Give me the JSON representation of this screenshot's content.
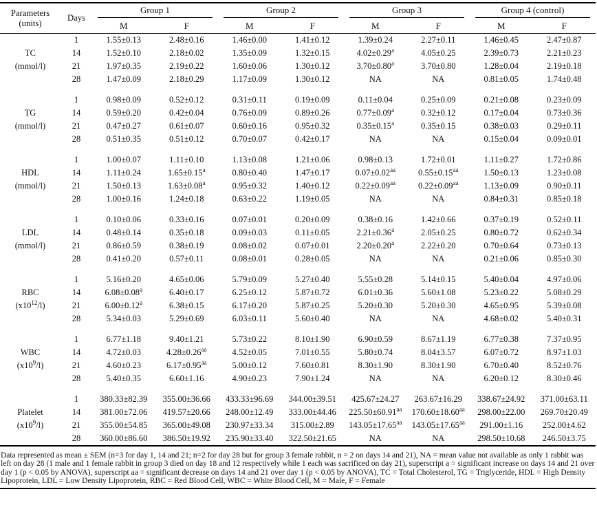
{
  "table": {
    "header": {
      "parameters_label": "Parameters",
      "parameters_units": "(units)",
      "days_label": "Days",
      "groups": [
        "Group 1",
        "Group 2",
        "Group 3",
        "Group 4 (control)"
      ],
      "sex_labels": [
        "M",
        "F"
      ]
    },
    "rows": [
      {
        "parameter": "TC",
        "unit": "(mmol/l)",
        "days": [
          {
            "day": "1",
            "values": [
              "1.55±0.13",
              "2.48±0.16",
              "1.46±0.00",
              "1.41±0.12",
              "1.39±0.24",
              "2.27±0.11",
              "1.46±0.45",
              "2.47±0.87"
            ]
          },
          {
            "day": "14",
            "values": [
              "1.52±0.10",
              "2.18±0.02",
              "1.35±0.09",
              "1.32±0.15",
              "4.02±0.29^{a}",
              "4.05±0.25",
              "2.39±0.73",
              "2.21±0.23"
            ]
          },
          {
            "day": "21",
            "values": [
              "1.97±0.35",
              "2.19±0.22",
              "1.60±0.06",
              "1.30±0.12",
              "3.70±0.80^{a}",
              "3.70±0.80",
              "1.28±0.04",
              "2.19±0.18"
            ]
          },
          {
            "day": "28",
            "values": [
              "1.47±0.09",
              "2.18±0.29",
              "1.17±0.09",
              "1.30±0.12",
              "NA",
              "NA",
              "0.81±0.05",
              "1.74±0.48"
            ]
          }
        ]
      },
      {
        "parameter": "TG",
        "unit": "(mmol/l)",
        "days": [
          {
            "day": "1",
            "values": [
              "0.98±0.09",
              "0.52±0.12",
              "0.31±0.11",
              "0.19±0.09",
              "0.11±0.04",
              "0.25±0.09",
              "0.21±0.08",
              "0.23±0.09"
            ]
          },
          {
            "day": "14",
            "values": [
              "0.59±0.20",
              "0.42±0.04",
              "0.76±0.09",
              "0.89±0.26",
              "0.77±0.09^{a}",
              "0.32±0.12",
              "0.17±0.04",
              "0.73±0.36"
            ]
          },
          {
            "day": "21",
            "values": [
              "0.47±0.27",
              "0.61±0.07",
              "0.60±0.16",
              "0.95±0.32",
              "0.35±0.15^{a}",
              "0.35±0.15",
              "0.38±0.03",
              "0.29±0.11"
            ]
          },
          {
            "day": "28",
            "values": [
              "0.51±0.35",
              "0.51±0.12",
              "0.70±0.07",
              "0.42±0.17",
              "NA",
              "NA",
              "0.15±0.04",
              "0.09±0.01"
            ]
          }
        ]
      },
      {
        "parameter": "HDL",
        "unit": "(mmol/l)",
        "days": [
          {
            "day": "1",
            "values": [
              "1.00±0.07",
              "1.11±0.10",
              "1.13±0.08",
              "1.21±0.06",
              "0.98±0.13",
              "1.72±0.01",
              "1.11±0.27",
              "1.72±0.86"
            ]
          },
          {
            "day": "14",
            "values": [
              "1.11±0.24",
              "1.65±0.15^{a}",
              "0.80±0.40",
              "1.47±0.17",
              "0.07±0.02^{aa}",
              "0.55±0.15^{aa}",
              "1.50±0.13",
              "1.23±0.08"
            ]
          },
          {
            "day": "21",
            "values": [
              "1.50±0.13",
              "1.63±0.08^{a}",
              "0.95±0.32",
              "1.40±0.12",
              "0.22±0.09^{aa}",
              "0.22±0.09^{aa}",
              "1.13±0.09",
              "0.90±0.11"
            ]
          },
          {
            "day": "28",
            "values": [
              "1.00±0.16",
              "1.24±0.18",
              "0.63±0.22",
              "1.19±0.05",
              "NA",
              "NA",
              "0.84±0.31",
              "0.85±0.18"
            ]
          }
        ]
      },
      {
        "parameter": "LDL",
        "unit": "(mmol/l)",
        "days": [
          {
            "day": "1",
            "values": [
              "0.10±0.06",
              "0.33±0.16",
              "0.07±0.01",
              "0.20±0.09",
              "0.38±0.16",
              "1.42±0.66",
              "0.37±0.19",
              "0.52±0.11"
            ]
          },
          {
            "day": "14",
            "values": [
              "0.48±0.14",
              "0.35±0.18",
              "0.09±0.03",
              "0.11±0.05",
              "2.21±0.36^{a}",
              "2.05±0.25",
              "0.80±0.72",
              "0.62±0.34"
            ]
          },
          {
            "day": "21",
            "values": [
              "0.86±0.59",
              "0.38±0.19",
              "0.08±0.02",
              "0.07±0.01",
              "2.20±0.20^{a}",
              "2.22±0.20",
              "0.70±0.64",
              "0.73±0.13"
            ]
          },
          {
            "day": "28",
            "values": [
              "0.41±0.20",
              "0.57±0.11",
              "0.08±0.01",
              "0.28±0.05",
              "NA",
              "NA",
              "0.21±0.06",
              "0.85±0.30"
            ]
          }
        ]
      },
      {
        "parameter": "RBC",
        "unit": "(x10^{12}/l)",
        "days": [
          {
            "day": "1",
            "values": [
              "5.16±0.20",
              "4.65±0.06",
              "5.79±0.09",
              "5.27±0.40",
              "5.55±0.28",
              "5.14±0.15",
              "5.40±0.04",
              "4.97±0.06"
            ]
          },
          {
            "day": "14",
            "values": [
              "6.08±0.08^{a}",
              "6.40±0.17",
              "6.25±0.12",
              "5.87±0.72",
              "6.01±0.36",
              "5.60±1.08",
              "5.23±0.22",
              "5.08±0.29"
            ]
          },
          {
            "day": "21",
            "values": [
              "6.00±0.12^{a}",
              "6.38±0.15",
              "6.17±0.20",
              "5.87±0.25",
              "5.20±0.30",
              "5.20±0.30",
              "4.65±0.95",
              "5.39±0.08"
            ]
          },
          {
            "day": "28",
            "values": [
              "5.34±0.03",
              "5.29±0.69",
              "6.03±0.11",
              "5.60±0.40",
              "NA",
              "NA",
              "4.68±0.02",
              "5.40±0.31"
            ]
          }
        ]
      },
      {
        "parameter": "WBC",
        "unit": "(x10^{9}/l)",
        "days": [
          {
            "day": "1",
            "values": [
              "6.77±1.18",
              "9.40±1.21",
              "5.73±0.22",
              "8.10±1.90",
              "6.90±0.59",
              "8.67±1.19",
              "6.77±0.38",
              "7.37±0.95"
            ]
          },
          {
            "day": "14",
            "values": [
              "4.72±0.03",
              "4.28±0.26^{aa}",
              "4.52±0.05",
              "7.01±0.55",
              "5.80±0.74",
              "8.04±3.57",
              "6.07±0.72",
              "8.97±1.03"
            ]
          },
          {
            "day": "21",
            "values": [
              "4.60±0.23",
              "6.17±0.95^{aa}",
              "5.00±0.12",
              "7.60±0.81",
              "8.30±1.90",
              "8.30±1.90",
              "6.70±0.40",
              "8.52±0.76"
            ]
          },
          {
            "day": "28",
            "values": [
              "5.40±0.35",
              "6.60±1.16",
              "4.90±0.23",
              "7.90±1.24",
              "NA",
              "NA",
              "6.20±0.12",
              "8.30±0.46"
            ]
          }
        ]
      },
      {
        "parameter": "Platelet",
        "unit": "(x10^{9}/l)",
        "days": [
          {
            "day": "1",
            "values": [
              "380.33±82.39",
              "355.00±36.66",
              "433.33±96.69",
              "344.00±39.51",
              "425.67±24.27",
              "263.67±16.29",
              "338.67±24.92",
              "371.00±63.11"
            ]
          },
          {
            "day": "14",
            "values": [
              "381.00±72.06",
              "419.57±20.66",
              "248.00±12.49",
              "333.00±44.46",
              "225.50±60.91^{aa}",
              "170.60±18.60^{aa}",
              "298.00±22.00",
              "269.70±20.49"
            ]
          },
          {
            "day": "21",
            "values": [
              "355.00±54.85",
              "365.00±49.08",
              "230.97±33.34",
              "315.00±2.89",
              "143.05±17.65^{aa}",
              "143.05±17.65^{aa}",
              "291.00±1.16",
              "252.00±4.62"
            ]
          },
          {
            "day": "28",
            "values": [
              "360.00±86.60",
              "386.50±19.92",
              "235.90±33.40",
              "322.50±21.65",
              "NA",
              "NA",
              "298.50±10.68",
              "246.50±3.75"
            ]
          }
        ]
      }
    ],
    "footnote": "Data represented as mean ± SEM (n=3 for day 1, 14 and 21; n=2 for day 28 but for group 3 female rabbit, n = 2 on days 14 and 21), NA = mean value not available as only 1 rabbit was left on day 28 (1 male and 1 female rabbit in group 3 died on day 18 and 12 respectively while 1 each was sacrificed on day 21), superscript a = significant increase on days 14 and 21 over day 1 (p < 0.05 by ANOVA),  superscript aa = significant decrease on days 14 and 21 over day 1 (p < 0.05 by ANOVA), TC = Total Cholesterol, TG = Triglyceride,  HDL = High Density Lipoprotein, LDL = Low Density Lipoprotein, RBC = Red Blood Cell, WBC = White Blood Cell, M = Male, F = Female"
  }
}
